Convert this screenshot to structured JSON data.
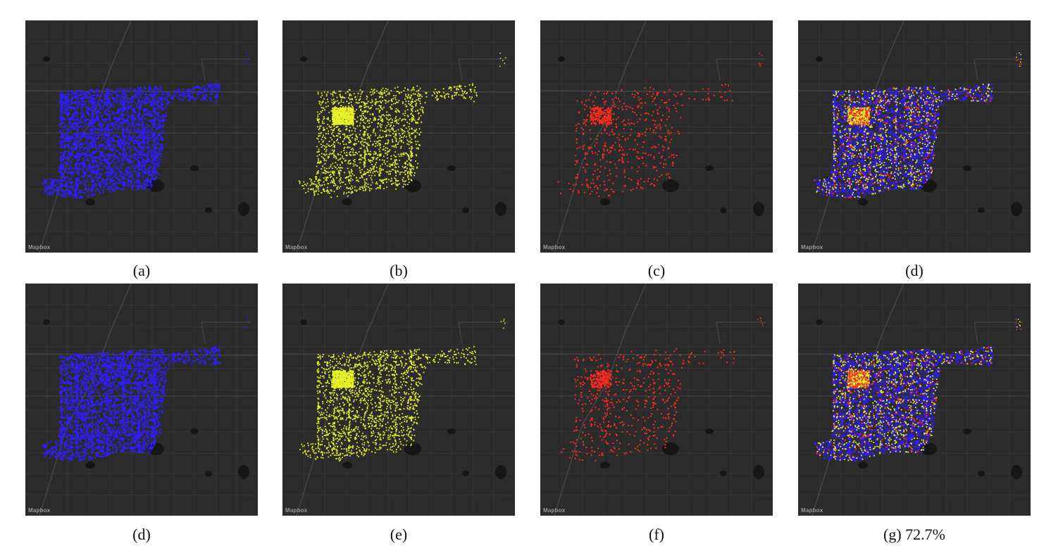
{
  "attribution": "Mapbox",
  "colors": {
    "background": "#2b2b2b",
    "roads": "#3a3a3a",
    "major_roads": "#464646",
    "water": "#161616",
    "blue": "#2f1cff",
    "yellow": "#e6f226",
    "red": "#ff2b1c"
  },
  "panels": [
    {
      "id": "a",
      "caption": "(a)",
      "layers": [
        "blue"
      ]
    },
    {
      "id": "b",
      "caption": "(b)",
      "layers": [
        "yellow"
      ]
    },
    {
      "id": "c",
      "caption": "(c)",
      "layers": [
        "red"
      ]
    },
    {
      "id": "d",
      "caption": "(d)",
      "layers": [
        "blue",
        "yellow",
        "red"
      ]
    },
    {
      "id": "d2",
      "caption": "(d)",
      "layers": [
        "blue"
      ]
    },
    {
      "id": "e",
      "caption": "(e)",
      "layers": [
        "yellow"
      ]
    },
    {
      "id": "f",
      "caption": "(f)",
      "layers": [
        "red"
      ]
    },
    {
      "id": "g",
      "caption": "(g) 72.7%",
      "layers": [
        "blue",
        "yellow",
        "red"
      ]
    }
  ]
}
